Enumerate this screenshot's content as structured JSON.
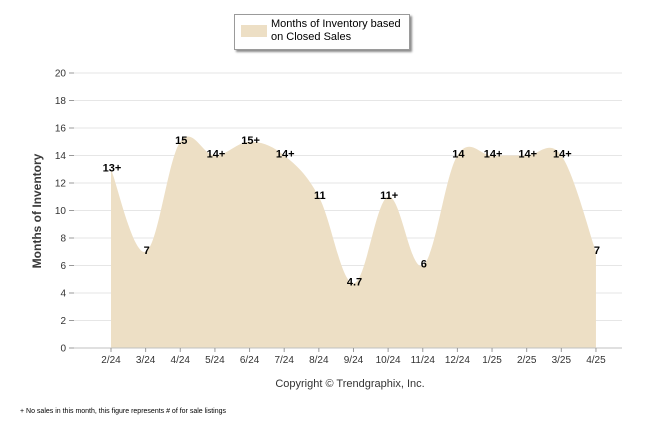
{
  "chart_data": {
    "type": "area",
    "categories": [
      "2/24",
      "3/24",
      "4/24",
      "5/24",
      "6/24",
      "7/24",
      "8/24",
      "9/24",
      "10/24",
      "11/24",
      "12/24",
      "1/25",
      "2/25",
      "3/25",
      "4/25"
    ],
    "values": [
      13,
      7,
      15,
      14,
      15,
      14,
      11,
      4.7,
      11,
      6,
      14,
      14,
      14,
      14,
      7
    ],
    "data_labels": [
      "13+",
      "7",
      "15",
      "14+",
      "15+",
      "14+",
      "11",
      "4.7",
      "11+",
      "6",
      "14",
      "14+",
      "14+",
      "14+",
      "7"
    ],
    "series": [
      {
        "name": "Months of Inventory based on Closed Sales",
        "values": [
          13,
          7,
          15,
          14,
          15,
          14,
          11,
          4.7,
          11,
          6,
          14,
          14,
          14,
          14,
          7
        ]
      }
    ],
    "ylabel": "Months of Inventory",
    "ylim": [
      0,
      20
    ],
    "yticks": [
      0,
      2,
      4,
      6,
      8,
      10,
      12,
      14,
      16,
      18,
      20
    ],
    "grid": true,
    "legend_position": "top-center",
    "colors": {
      "fill": "#eddfc5",
      "grid": "#e6e6e6"
    }
  },
  "copyright": "Copyright © Trendgraphix, Inc.",
  "footnote": "+ No sales in this month, this figure represents # of for sale listings"
}
